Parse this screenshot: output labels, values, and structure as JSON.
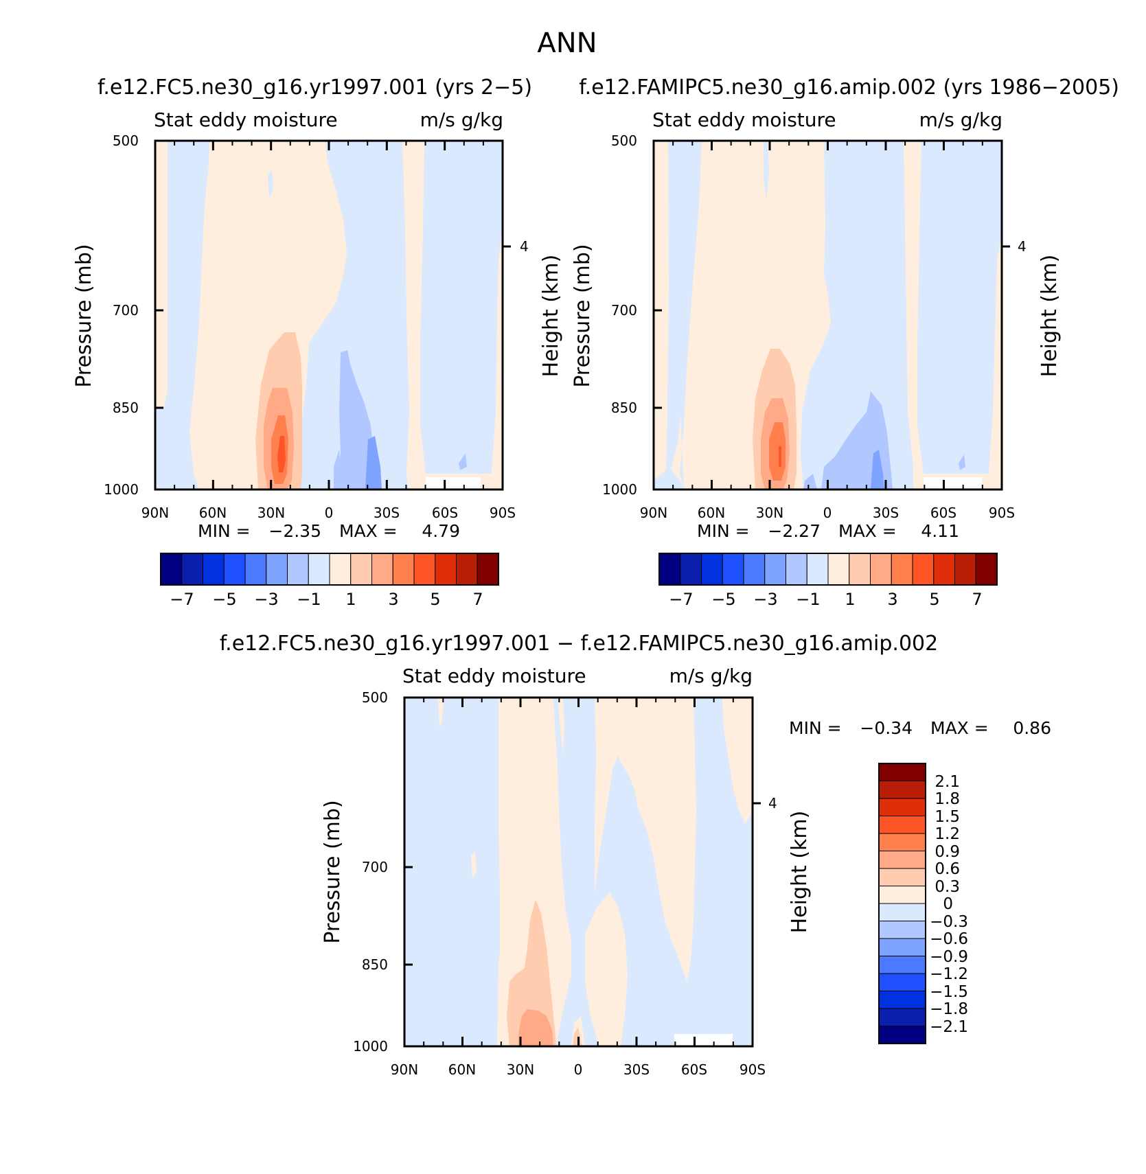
{
  "figure": {
    "main_title": "ANN"
  },
  "colors": {
    "cb_map_colors": [
      "#000080",
      "#0a1fad",
      "#0032e0",
      "#1e50ff",
      "#4b7aff",
      "#7fa4ff",
      "#b0c8ff",
      "#dbe9ff",
      "#ffeedd",
      "#ffccb0",
      "#ffa986",
      "#ff7f4d",
      "#ff5425",
      "#e02e08",
      "#b81e05",
      "#800000"
    ],
    "cb_diff_colors": [
      "#000080",
      "#0a1fad",
      "#0032e0",
      "#1e50ff",
      "#4b7aff",
      "#7fa4ff",
      "#b0c8ff",
      "#dbe9ff",
      "#ffeedd",
      "#ffccb0",
      "#ffa986",
      "#ff7f4d",
      "#ff5425",
      "#e02e08",
      "#b81e05",
      "#800000"
    ]
  },
  "chart_data": [
    {
      "type": "heatmap",
      "title": "f.e12.FC5.ne30_g16.yr1997.001 (yrs 2-5)",
      "left_subtitle": "Stat eddy moisture",
      "right_subtitle": "m/s g/kg",
      "ylabel": "Pressure (mb)",
      "ylabel_right": "Height (km)",
      "x_ticks": [
        "90N",
        "60N",
        "30N",
        "0",
        "30S",
        "60S",
        "90S"
      ],
      "y_ticks": [
        "500",
        "700",
        "850",
        "1000"
      ],
      "y_tick_values": [
        500,
        700,
        850,
        1000
      ],
      "ylim": [
        1000,
        500
      ],
      "right_ticks": [
        "4"
      ],
      "stats": {
        "min_label": "MIN =",
        "min": "-2.35",
        "max_label": "MAX =",
        "max": "4.79"
      },
      "colorbar_labels": [
        "-7",
        "-5",
        "-3",
        "-1",
        "1",
        "3",
        "5",
        "7"
      ]
    },
    {
      "type": "heatmap",
      "title": "f.e12.FAMIPC5.ne30_g16.amip.002 (yrs 1986-2005)",
      "left_subtitle": "Stat eddy moisture",
      "right_subtitle": "m/s g/kg",
      "ylabel": "Pressure (mb)",
      "ylabel_right": "Height (km)",
      "x_ticks": [
        "90N",
        "60N",
        "30N",
        "0",
        "30S",
        "60S",
        "90S"
      ],
      "y_ticks": [
        "500",
        "700",
        "850",
        "1000"
      ],
      "y_tick_values": [
        500,
        700,
        850,
        1000
      ],
      "ylim": [
        1000,
        500
      ],
      "right_ticks": [
        "4"
      ],
      "stats": {
        "min_label": "MIN =",
        "min": "-2.27",
        "max_label": "MAX =",
        "max": "4.11"
      },
      "colorbar_labels": [
        "-7",
        "-5",
        "-3",
        "-1",
        "1",
        "3",
        "5",
        "7"
      ]
    },
    {
      "type": "heatmap",
      "title": "f.e12.FC5.ne30_g16.yr1997.001 - f.e12.FAMIPC5.ne30_g16.amip.002",
      "left_subtitle": "Stat eddy moisture",
      "right_subtitle": "m/s g/kg",
      "ylabel": "Pressure (mb)",
      "ylabel_right": "Height (km)",
      "x_ticks": [
        "90N",
        "60N",
        "30N",
        "0",
        "30S",
        "60S",
        "90S"
      ],
      "y_ticks": [
        "500",
        "700",
        "850",
        "1000"
      ],
      "y_tick_values": [
        500,
        700,
        850,
        1000
      ],
      "ylim": [
        1000,
        500
      ],
      "right_ticks": [
        "4"
      ],
      "stats": {
        "min_label": "MIN =",
        "min": "-0.34",
        "max_label": "MAX =",
        "max": "0.86"
      },
      "colorbar_labels": [
        "2.1",
        "1.8",
        "1.5",
        "1.2",
        "0.9",
        "0.6",
        "0.3",
        "0",
        "-0.3",
        "-0.6",
        "-0.9",
        "-1.2",
        "-1.5",
        "-1.8",
        "-2.1"
      ]
    }
  ]
}
